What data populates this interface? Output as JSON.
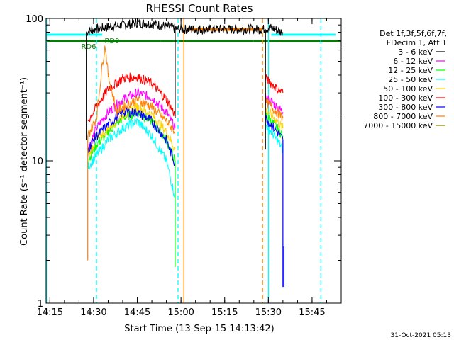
{
  "chart_data": {
    "type": "line",
    "title": "RHESSI Count Rates",
    "xlabel": "Start Time (13-Sep-15 14:13:42)",
    "ylabel": "Count Rate (s⁻¹ detector segment⁻¹)",
    "yscale": "log",
    "ylim": [
      1,
      100
    ],
    "xlim": [
      "14:13:42",
      "15:55:00"
    ],
    "x_ticks": [
      "14:15",
      "14:30",
      "14:45",
      "15:00",
      "15:15",
      "15:30",
      "15:45"
    ],
    "y_ticks": [
      "1",
      "10",
      "100"
    ],
    "legend_placement": "top-right",
    "legend_header": [
      "Det 1f,3f,5f,6f,7f,",
      "FDecim 1, Att 1"
    ],
    "footer_date": "31-Oct-2021 05:13",
    "series": [
      {
        "name": "3 - 6 keV",
        "color": "#000000",
        "x": [
          "14:27:30",
          "14:30",
          "14:35",
          "14:40",
          "14:45",
          "14:50",
          "14:55",
          "14:58",
          "15:02",
          "15:05",
          "15:10",
          "15:15",
          "15:20",
          "15:25",
          "15:28",
          "15:31",
          "15:34",
          "15:35"
        ],
        "y": [
          80,
          84,
          87,
          90,
          93,
          92,
          88,
          85,
          84,
          84,
          84,
          84,
          84,
          84,
          84,
          86,
          81,
          80
        ]
      },
      {
        "name": "6 - 12 keV",
        "color": "#ff00ff",
        "x": [
          "14:28",
          "14:31",
          "14:35",
          "14:40",
          "14:45",
          "14:50",
          "14:55",
          "14:58",
          "15:29",
          "15:31",
          "15:33",
          "15:35"
        ],
        "y": [
          12,
          17,
          22,
          27,
          30,
          28,
          22,
          17,
          28,
          26,
          24,
          22
        ]
      },
      {
        "name": "12 - 25 keV",
        "color": "#00ff00",
        "x": [
          "14:28",
          "14:31",
          "14:35",
          "14:40",
          "14:45",
          "14:50",
          "14:55",
          "14:58",
          "15:29",
          "15:31",
          "15:33",
          "15:35"
        ],
        "y": [
          10,
          13,
          16,
          20,
          22,
          19,
          14,
          10,
          21,
          19,
          17,
          15
        ]
      },
      {
        "name": "25 - 50 keV",
        "color": "#00ffff",
        "x": [
          "14:28",
          "14:31",
          "14:35",
          "14:40",
          "14:45",
          "14:50",
          "14:55",
          "14:58",
          "15:29",
          "15:31",
          "15:33",
          "15:35"
        ],
        "y": [
          9,
          11,
          14,
          17,
          19,
          15,
          10,
          5.5,
          18,
          16,
          14,
          12
        ]
      },
      {
        "name": "50 - 100 keV",
        "color": "#ffd400",
        "x": [
          "14:28",
          "14:31",
          "14:35",
          "14:40",
          "14:45",
          "14:50",
          "14:55",
          "14:58",
          "15:29",
          "15:31",
          "15:33",
          "15:35"
        ],
        "y": [
          11,
          14,
          17,
          21,
          24,
          21,
          16,
          12,
          23,
          21,
          19,
          17
        ]
      },
      {
        "name": "100 - 300 keV",
        "color": "#ff0000",
        "x": [
          "14:28",
          "14:31",
          "14:35",
          "14:40",
          "14:45",
          "14:50",
          "14:55",
          "14:58",
          "15:29",
          "15:31",
          "15:33",
          "15:35"
        ],
        "y": [
          19,
          24,
          32,
          38,
          39,
          35,
          27,
          21,
          38,
          35,
          32,
          30
        ]
      },
      {
        "name": "300 - 800 keV",
        "color": "#0000ff",
        "x": [
          "14:28",
          "14:31",
          "14:35",
          "14:40",
          "14:45",
          "14:50",
          "14:55",
          "14:58",
          "15:29",
          "15:31",
          "15:33",
          "15:35"
        ],
        "y": [
          12,
          15,
          18,
          22,
          22,
          19,
          14,
          9.5,
          20,
          18,
          16,
          14
        ]
      },
      {
        "name": "800 - 7000 keV",
        "color": "#ff8000",
        "x": [
          "14:28",
          "14:31",
          "14:33",
          "14:34",
          "14:35",
          "14:38",
          "14:40",
          "14:45",
          "14:50",
          "14:55",
          "14:58",
          "15:29",
          "15:31",
          "15:33",
          "15:35"
        ],
        "y": [
          15,
          20,
          48,
          65,
          40,
          22,
          24,
          27,
          24,
          19,
          16,
          26,
          24,
          22,
          20
        ]
      },
      {
        "name": "7000 - 15000 keV",
        "color": "#808000",
        "x": [],
        "y": []
      }
    ],
    "attenuator_bars": [
      {
        "label": "RD6",
        "color": "#008000",
        "ranges": [
          [
            "14:13:42",
            "14:40"
          ]
        ]
      },
      {
        "label": "RD0",
        "color": "#008000",
        "ranges": [
          [
            "14:27",
            "14:53"
          ],
          [
            "14:53",
            "15:25"
          ],
          [
            "15:25",
            "15:41"
          ],
          [
            "15:37",
            "15:55"
          ]
        ]
      }
    ],
    "mode_bars": [
      {
        "color": "#00ffff",
        "ranges": [
          [
            "14:13:42",
            "14:27"
          ],
          [
            "14:27",
            "14:33"
          ],
          [
            "15:31",
            "15:53"
          ]
        ]
      },
      {
        "color": "#ff8000",
        "ranges": [
          [
            "15:02",
            "15:28"
          ]
        ]
      }
    ],
    "vertical_lines": [
      {
        "color": "#00ffff",
        "dashed": false,
        "x": "14:13:50"
      },
      {
        "color": "#00ffff",
        "dashed": true,
        "x": "14:31"
      },
      {
        "color": "#00ffff",
        "dashed": true,
        "x": "14:59"
      },
      {
        "color": "#ff8000",
        "dashed": false,
        "x": "15:01"
      },
      {
        "color": "#ff8000",
        "dashed": true,
        "x": "15:28"
      },
      {
        "color": "#00ffff",
        "dashed": false,
        "x": "15:30"
      },
      {
        "color": "#00ffff",
        "dashed": true,
        "x": "15:48"
      }
    ]
  }
}
